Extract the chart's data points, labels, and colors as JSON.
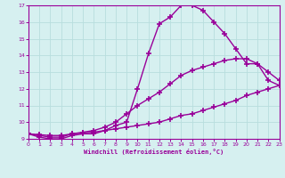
{
  "background_color": "#d6f0f0",
  "grid_color": "#b8dede",
  "line_color": "#990099",
  "marker": "+",
  "markersize": 4,
  "markeredgewidth": 1.2,
  "linewidth": 1.0,
  "xlim": [
    0,
    23
  ],
  "ylim": [
    9,
    17
  ],
  "xticks": [
    0,
    1,
    2,
    3,
    4,
    5,
    6,
    7,
    8,
    9,
    10,
    11,
    12,
    13,
    14,
    15,
    16,
    17,
    18,
    19,
    20,
    21,
    22,
    23
  ],
  "yticks": [
    9,
    10,
    11,
    12,
    13,
    14,
    15,
    16,
    17
  ],
  "xlabel": "Windchill (Refroidissement éolien,°C)",
  "series": [
    {
      "x": [
        0,
        1,
        2,
        3,
        4,
        5,
        6,
        7,
        8,
        9,
        10,
        11,
        12,
        13,
        14,
        15,
        16,
        17,
        18,
        19,
        20,
        21,
        22,
        23
      ],
      "y": [
        9.3,
        9.1,
        9.0,
        9.0,
        9.2,
        9.3,
        9.3,
        9.5,
        9.8,
        10.0,
        12.0,
        14.1,
        15.9,
        16.3,
        17.0,
        17.0,
        16.7,
        16.0,
        15.3,
        14.4,
        13.5,
        13.5,
        12.5,
        12.2
      ]
    },
    {
      "x": [
        0,
        1,
        2,
        3,
        4,
        5,
        6,
        7,
        8,
        9,
        10,
        11,
        12,
        13,
        14,
        15,
        16,
        17,
        18,
        19,
        20,
        21,
        22,
        23
      ],
      "y": [
        9.3,
        9.2,
        9.1,
        9.1,
        9.3,
        9.4,
        9.5,
        9.7,
        10.0,
        10.5,
        11.0,
        11.4,
        11.8,
        12.3,
        12.8,
        13.1,
        13.3,
        13.5,
        13.7,
        13.8,
        13.8,
        13.5,
        13.0,
        12.5
      ]
    },
    {
      "x": [
        0,
        1,
        2,
        3,
        4,
        5,
        6,
        7,
        8,
        9,
        10,
        11,
        12,
        13,
        14,
        15,
        16,
        17,
        18,
        19,
        20,
        21,
        22,
        23
      ],
      "y": [
        9.3,
        9.25,
        9.2,
        9.2,
        9.3,
        9.35,
        9.4,
        9.5,
        9.6,
        9.7,
        9.8,
        9.9,
        10.0,
        10.2,
        10.4,
        10.5,
        10.7,
        10.9,
        11.1,
        11.3,
        11.6,
        11.8,
        12.0,
        12.2
      ]
    }
  ]
}
